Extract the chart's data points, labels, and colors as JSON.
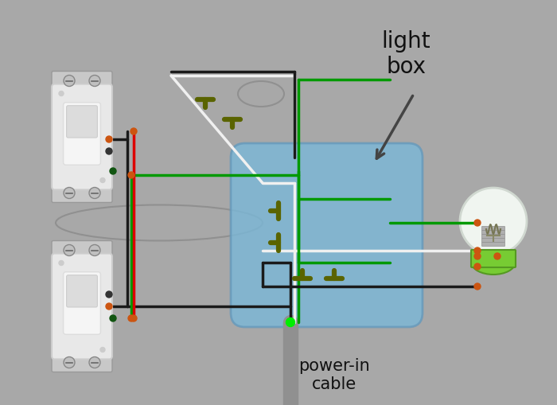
{
  "bg_color": "#a8a8a8",
  "light_box_text": "light\nbox",
  "power_in_text": "power-in\ncable",
  "wire_colors": {
    "black": "#1a1a1a",
    "white": "#f0f0f0",
    "red": "#dd0000",
    "green": "#009900",
    "bright_green": "#00ee00",
    "dark_olive": "#5a6400",
    "gray_cable": "#909090"
  },
  "light_box_fill": "#7ab8d8",
  "bulb_glass_color": "#e8ede8",
  "bulb_base_color": "#66bb33",
  "bulb_neck_color": "#aaaaaa",
  "connector_color": "#cc5511",
  "screw_color": "#aaaaaa"
}
